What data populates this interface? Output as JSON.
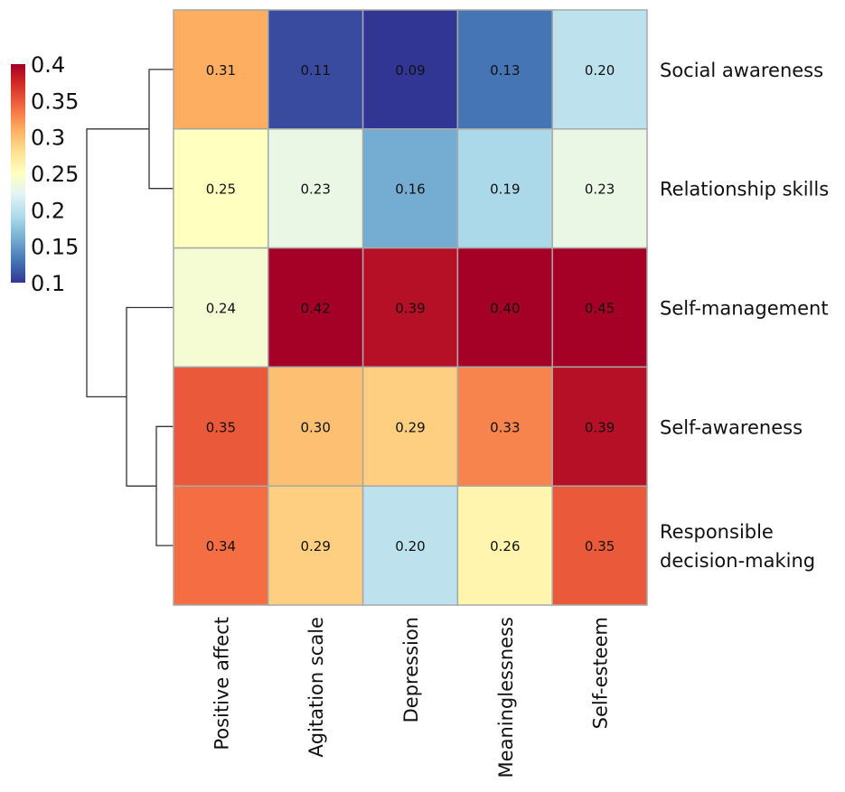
{
  "chart_data": {
    "type": "heatmap",
    "title": "",
    "rows": [
      "Social awareness",
      "Relationship skills",
      "Self-management",
      "Self-awareness",
      "Responsible decision-making"
    ],
    "row_label_lines": [
      [
        "Social awareness"
      ],
      [
        "Relationship skills"
      ],
      [
        "Self-management"
      ],
      [
        "Self-awareness"
      ],
      [
        "Responsible",
        "decision-making"
      ]
    ],
    "columns": [
      "Positive affect",
      "Agitation scale",
      "Depression",
      "Meaninglessness",
      "Self-esteem"
    ],
    "values": [
      [
        0.31,
        0.11,
        0.09,
        0.13,
        0.2
      ],
      [
        0.25,
        0.23,
        0.16,
        0.19,
        0.23
      ],
      [
        0.24,
        0.42,
        0.39,
        0.4,
        0.45
      ],
      [
        0.35,
        0.3,
        0.29,
        0.33,
        0.39
      ],
      [
        0.34,
        0.29,
        0.2,
        0.26,
        0.35
      ]
    ],
    "value_labels": [
      [
        "0.31",
        "0.11",
        "0.09",
        "0.13",
        "0.20"
      ],
      [
        "0.25",
        "0.23",
        "0.16",
        "0.19",
        "0.23"
      ],
      [
        "0.24",
        "0.42",
        "0.39",
        "0.40",
        "0.45"
      ],
      [
        "0.35",
        "0.30",
        "0.29",
        "0.33",
        "0.39"
      ],
      [
        "0.34",
        "0.29",
        "0.20",
        "0.26",
        "0.35"
      ]
    ],
    "colorbar": {
      "range": [
        0.1,
        0.4
      ],
      "ticks": [
        "0.4",
        "0.35",
        "0.3",
        "0.25",
        "0.2",
        "0.15",
        "0.1"
      ],
      "tick_values": [
        0.4,
        0.35,
        0.3,
        0.25,
        0.2,
        0.15,
        0.1
      ],
      "palette": [
        "#313695",
        "#4575b4",
        "#74add1",
        "#abd9e9",
        "#e0f3f8",
        "#ffffbf",
        "#fee090",
        "#fdae61",
        "#f46d43",
        "#d73027",
        "#a50026"
      ],
      "placement": "left"
    },
    "row_dendrogram": "((Social awareness, Relationship skills), (Self-management, (Self-awareness, Responsible decision-making)))"
  }
}
